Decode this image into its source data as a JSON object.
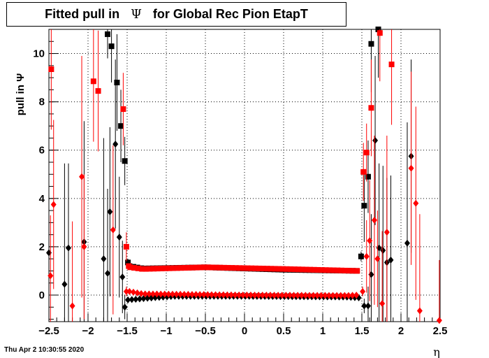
{
  "title": {
    "prefix": "Fitted pull in",
    "symbol": "Ψ",
    "suffix": "for Global Rec Pion EtapT"
  },
  "footer": {
    "timestamp": "Thu Apr  2 10:30:55 2020"
  },
  "chart_data": {
    "type": "scatter",
    "xlabel": "η",
    "ylabel": "pull in  Ψ",
    "xlim": [
      -2.5,
      2.5
    ],
    "ylim": [
      -1.1,
      11.0
    ],
    "grid": true,
    "x_ticks": [
      "−2.5",
      "−2",
      "−1.5",
      "−1",
      "−0.5",
      "0",
      "0.5",
      "1",
      "1.5",
      "2",
      "2.5"
    ],
    "x_tick_values": [
      -2.5,
      -2,
      -1.5,
      -1,
      -0.5,
      0,
      0.5,
      1,
      1.5,
      2,
      2.5
    ],
    "y_ticks": [
      "0",
      "2",
      "4",
      "6",
      "8",
      "10"
    ],
    "y_tick_values": [
      0,
      2,
      4,
      6,
      8,
      10
    ],
    "series": [
      {
        "marker": "square",
        "color": "#000000",
        "points": [
          {
            "x": -1.75,
            "y": 10.8,
            "e": 1.0
          },
          {
            "x": -1.7,
            "y": 10.3,
            "e": 1.5
          },
          {
            "x": -1.63,
            "y": 8.8,
            "e": 2.0
          },
          {
            "x": -1.58,
            "y": 7.0,
            "e": 1.5
          },
          {
            "x": -1.53,
            "y": 5.55,
            "e": 1.0
          },
          {
            "x": -1.49,
            "y": 1.35,
            "e": 0.15
          },
          {
            "x": 1.49,
            "y": 1.6,
            "e": 0.2
          },
          {
            "x": 1.53,
            "y": 3.7,
            "e": 1.5
          },
          {
            "x": 1.58,
            "y": 4.9,
            "e": 1.5
          },
          {
            "x": 1.62,
            "y": 10.4,
            "e": 2.0
          },
          {
            "x": 1.71,
            "y": 11.0,
            "e": 2.0
          }
        ],
        "band": {
          "x_start": -1.47,
          "x_end": 1.47,
          "step": 0.05,
          "profile": [
            [
              -1.47,
              1.2
            ],
            [
              -1.3,
              1.1
            ],
            [
              -0.5,
              1.15
            ],
            [
              0.5,
              1.05
            ],
            [
              1.47,
              1.0
            ]
          ]
        }
      },
      {
        "marker": "square",
        "color": "#ff0000",
        "points": [
          {
            "x": -2.47,
            "y": 9.35,
            "e": 2.5
          },
          {
            "x": -1.93,
            "y": 8.85,
            "e": 2.5
          },
          {
            "x": -1.87,
            "y": 8.45,
            "e": 2.5
          },
          {
            "x": -1.55,
            "y": 7.7,
            "e": 1.5
          },
          {
            "x": -1.51,
            "y": 2.0,
            "e": 0.6
          },
          {
            "x": -1.48,
            "y": 1.2,
            "e": 0.1
          },
          {
            "x": 1.52,
            "y": 5.1,
            "e": 1.2
          },
          {
            "x": 1.56,
            "y": 5.9,
            "e": 1.2
          },
          {
            "x": 1.62,
            "y": 7.75,
            "e": 2.0
          },
          {
            "x": 1.73,
            "y": 10.85,
            "e": 2.0
          },
          {
            "x": 1.88,
            "y": 9.55,
            "e": 2.5
          }
        ],
        "band": {
          "x_start": -1.46,
          "x_end": 1.46,
          "step": 0.05,
          "profile": [
            [
              -1.46,
              1.15
            ],
            [
              -1.3,
              1.08
            ],
            [
              -0.5,
              1.15
            ],
            [
              0.5,
              1.08
            ],
            [
              1.46,
              1.0
            ]
          ]
        }
      },
      {
        "marker": "diamond",
        "color": "#000000",
        "points": [
          {
            "x": -2.5,
            "y": 1.75,
            "e": 2.0
          },
          {
            "x": -2.3,
            "y": 0.45,
            "e": 5.0
          },
          {
            "x": -2.25,
            "y": 1.95,
            "e": 3.5
          },
          {
            "x": -2.05,
            "y": 2.2,
            "e": 5.0
          },
          {
            "x": -1.8,
            "y": 1.5,
            "e": 5.0
          },
          {
            "x": -1.75,
            "y": 0.9,
            "e": 3.5
          },
          {
            "x": -1.72,
            "y": 3.45,
            "e": 3.5
          },
          {
            "x": -1.65,
            "y": 6.25,
            "e": 3.5
          },
          {
            "x": -1.6,
            "y": 2.4,
            "e": 2.5
          },
          {
            "x": -1.56,
            "y": 0.75,
            "e": 1.5
          },
          {
            "x": -1.53,
            "y": -0.5,
            "e": 0.5
          },
          {
            "x": 1.53,
            "y": -0.45,
            "e": 0.3
          },
          {
            "x": 1.58,
            "y": -0.45,
            "e": 0.8
          },
          {
            "x": 1.62,
            "y": 0.85,
            "e": 2.5
          },
          {
            "x": 1.67,
            "y": 6.4,
            "e": 3.5
          },
          {
            "x": 1.72,
            "y": 1.95,
            "e": 3.5
          },
          {
            "x": 1.77,
            "y": 1.85,
            "e": 3.5
          },
          {
            "x": 1.82,
            "y": 1.35,
            "e": 3.5
          },
          {
            "x": 1.87,
            "y": 1.45,
            "e": 3.5
          },
          {
            "x": 2.08,
            "y": 2.15,
            "e": 5.0
          },
          {
            "x": 2.13,
            "y": 5.75,
            "e": 4.0
          }
        ],
        "band": {
          "x_start": -1.49,
          "x_end": 1.49,
          "step": 0.05,
          "profile": [
            [
              -1.49,
              -0.2
            ],
            [
              -1.2,
              -0.12
            ],
            [
              -0.9,
              -0.05
            ],
            [
              0,
              -0.05
            ],
            [
              1.3,
              -0.08
            ],
            [
              1.49,
              -0.12
            ]
          ]
        }
      },
      {
        "marker": "diamond",
        "color": "#ff0000",
        "points": [
          {
            "x": -2.48,
            "y": 0.8,
            "e": 2.5
          },
          {
            "x": -2.44,
            "y": 3.75,
            "e": 3.5
          },
          {
            "x": -2.2,
            "y": -0.45,
            "e": 3.5
          },
          {
            "x": -2.08,
            "y": 4.9,
            "e": 5.0
          },
          {
            "x": -2.05,
            "y": 2.0,
            "e": 3.0
          },
          {
            "x": -1.68,
            "y": 2.7,
            "e": 3.5
          },
          {
            "x": -1.51,
            "y": 0.15,
            "e": 0.2
          },
          {
            "x": 1.51,
            "y": 0.15,
            "e": 0.2
          },
          {
            "x": 1.56,
            "y": 1.6,
            "e": 1.5
          },
          {
            "x": 1.6,
            "y": 2.25,
            "e": 2.5
          },
          {
            "x": 1.66,
            "y": 3.1,
            "e": 3.5
          },
          {
            "x": 1.7,
            "y": 1.5,
            "e": 2.0
          },
          {
            "x": 1.76,
            "y": -0.35,
            "e": 3.0
          },
          {
            "x": 1.82,
            "y": 2.6,
            "e": 4.0
          },
          {
            "x": 2.13,
            "y": 5.25,
            "e": 4.0
          },
          {
            "x": 2.19,
            "y": 3.8,
            "e": 4.0
          },
          {
            "x": 2.24,
            "y": -0.65,
            "e": 4.0
          },
          {
            "x": 2.49,
            "y": -1.05,
            "e": 2.5
          }
        ],
        "band": {
          "x_start": -1.47,
          "x_end": 1.47,
          "step": 0.05,
          "profile": [
            [
              -1.47,
              0.15
            ],
            [
              -1.3,
              0.05
            ],
            [
              0,
              0.0
            ],
            [
              1.3,
              -0.02
            ],
            [
              1.47,
              0.0
            ]
          ]
        }
      }
    ]
  }
}
